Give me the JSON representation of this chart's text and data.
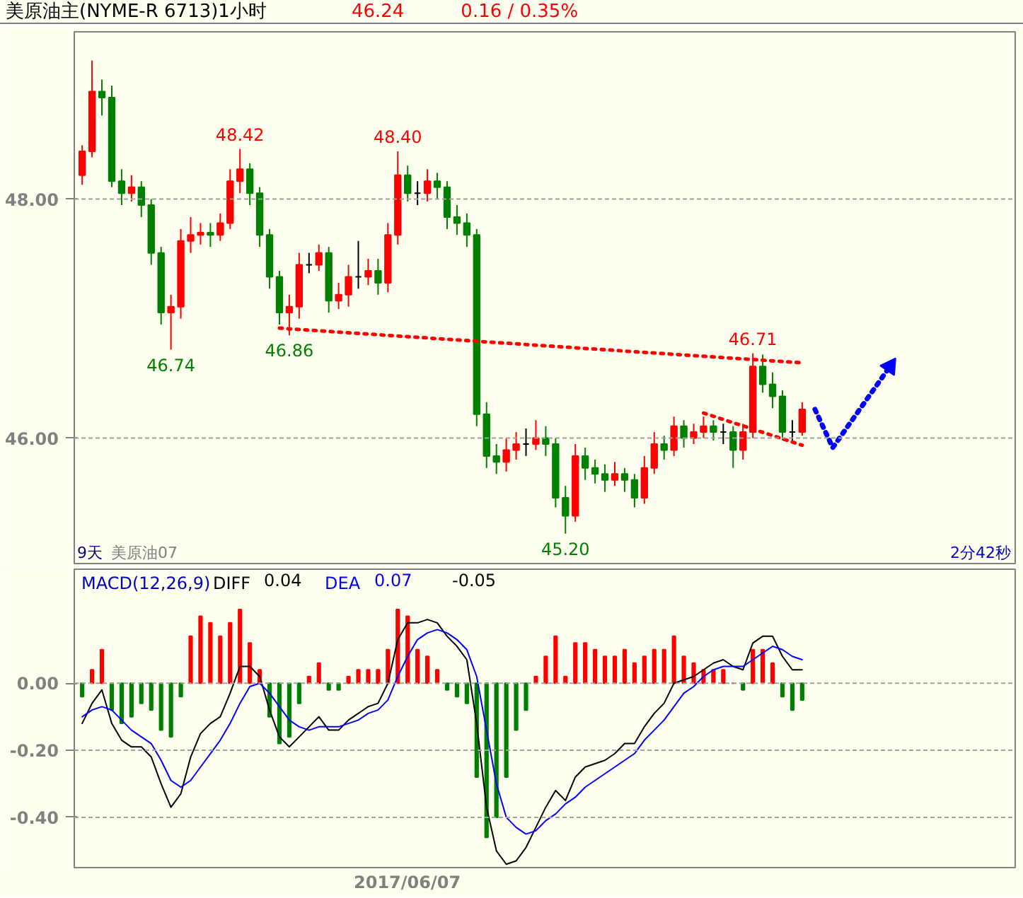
{
  "chart_data": [
    {
      "type": "candlestick",
      "title": "美原油主(NYME-R 6713)1小时",
      "categories": [
        null,
        null,
        null,
        null,
        null,
        null,
        null,
        null,
        null,
        null,
        null,
        null,
        null,
        null,
        null,
        null,
        null,
        null,
        null,
        null,
        null,
        null,
        null,
        null,
        null,
        null,
        null,
        null,
        null,
        null,
        null,
        null,
        null,
        null,
        null,
        null,
        null,
        null,
        null,
        null,
        null,
        null,
        null,
        null,
        null,
        null,
        null,
        null,
        null,
        null,
        null,
        null,
        null,
        null,
        null,
        null,
        null,
        null,
        null,
        null,
        null,
        null,
        null,
        null,
        null,
        null,
        null,
        null,
        null,
        null,
        null,
        null,
        null,
        null
      ],
      "ohlc": [
        [
          48.2,
          48.45,
          48.12,
          48.4
        ],
        [
          48.4,
          49.16,
          48.35,
          48.9
        ],
        [
          48.9,
          49.0,
          48.7,
          48.85
        ],
        [
          48.85,
          48.95,
          48.1,
          48.15
        ],
        [
          48.15,
          48.25,
          47.95,
          48.05
        ],
        [
          48.05,
          48.2,
          47.98,
          48.1
        ],
        [
          48.1,
          48.15,
          47.85,
          47.95
        ],
        [
          47.95,
          48.0,
          47.45,
          47.55
        ],
        [
          47.55,
          47.6,
          46.95,
          47.05
        ],
        [
          47.05,
          47.2,
          46.74,
          47.1
        ],
        [
          47.1,
          47.75,
          47.0,
          47.65
        ],
        [
          47.65,
          47.85,
          47.55,
          47.7
        ],
        [
          47.7,
          47.8,
          47.62,
          47.72
        ],
        [
          47.72,
          47.8,
          47.6,
          47.7
        ],
        [
          47.7,
          47.88,
          47.65,
          47.8
        ],
        [
          47.8,
          48.25,
          47.75,
          48.15
        ],
        [
          48.15,
          48.42,
          48.05,
          48.25
        ],
        [
          48.25,
          48.3,
          47.95,
          48.05
        ],
        [
          48.05,
          48.1,
          47.6,
          47.7
        ],
        [
          47.7,
          47.75,
          47.25,
          47.35
        ],
        [
          47.35,
          47.4,
          46.95,
          47.05
        ],
        [
          47.05,
          47.2,
          46.86,
          47.1
        ],
        [
          47.1,
          47.55,
          47.0,
          47.45
        ],
        [
          47.45,
          47.55,
          47.38,
          47.45
        ],
        [
          47.45,
          47.62,
          47.4,
          47.55
        ],
        [
          47.55,
          47.6,
          47.05,
          47.15
        ],
        [
          47.15,
          47.3,
          47.08,
          47.2
        ],
        [
          47.2,
          47.45,
          47.1,
          47.35
        ],
        [
          47.35,
          47.65,
          47.25,
          47.35
        ],
        [
          47.35,
          47.5,
          47.28,
          47.4
        ],
        [
          47.4,
          47.5,
          47.2,
          47.3
        ],
        [
          47.3,
          47.8,
          47.22,
          47.7
        ],
        [
          47.7,
          48.4,
          47.62,
          48.2
        ],
        [
          48.2,
          48.28,
          47.98,
          48.05
        ],
        [
          48.05,
          48.15,
          47.95,
          48.05
        ],
        [
          48.05,
          48.25,
          47.98,
          48.15
        ],
        [
          48.15,
          48.22,
          48.0,
          48.1
        ],
        [
          48.1,
          48.15,
          47.75,
          47.85
        ],
        [
          47.85,
          47.95,
          47.7,
          47.8
        ],
        [
          47.8,
          47.88,
          47.6,
          47.7
        ],
        [
          47.7,
          47.75,
          46.1,
          46.2
        ],
        [
          46.2,
          46.3,
          45.75,
          45.85
        ],
        [
          45.85,
          45.95,
          45.7,
          45.8
        ],
        [
          45.8,
          46.0,
          45.72,
          45.9
        ],
        [
          45.9,
          46.05,
          45.82,
          45.95
        ],
        [
          45.95,
          46.08,
          45.85,
          45.95
        ],
        [
          45.95,
          46.15,
          45.9,
          46.0
        ],
        [
          46.0,
          46.1,
          45.85,
          45.95
        ],
        [
          45.95,
          46.0,
          45.42,
          45.5
        ],
        [
          45.5,
          45.6,
          45.2,
          45.35
        ],
        [
          45.35,
          45.95,
          45.3,
          45.85
        ],
        [
          45.85,
          45.92,
          45.65,
          45.75
        ],
        [
          45.75,
          45.82,
          45.62,
          45.7
        ],
        [
          45.7,
          45.78,
          45.55,
          45.65
        ],
        [
          45.65,
          45.8,
          45.6,
          45.7
        ],
        [
          45.7,
          45.75,
          45.55,
          45.65
        ],
        [
          45.65,
          45.7,
          45.42,
          45.5
        ],
        [
          45.5,
          45.85,
          45.45,
          45.75
        ],
        [
          45.75,
          46.05,
          45.7,
          45.95
        ],
        [
          45.95,
          46.02,
          45.82,
          45.9
        ],
        [
          45.9,
          46.18,
          45.85,
          46.1
        ],
        [
          46.1,
          46.15,
          45.92,
          46.0
        ],
        [
          46.0,
          46.12,
          45.95,
          46.05
        ],
        [
          46.05,
          46.18,
          46.0,
          46.1
        ],
        [
          46.1,
          46.15,
          45.98,
          46.05
        ],
        [
          46.05,
          46.12,
          45.95,
          46.05
        ],
        [
          46.05,
          46.1,
          45.75,
          45.9
        ],
        [
          45.9,
          46.12,
          45.82,
          46.05
        ],
        [
          46.05,
          46.71,
          46.0,
          46.6
        ],
        [
          46.6,
          46.7,
          46.38,
          46.45
        ],
        [
          46.45,
          46.55,
          46.25,
          46.35
        ],
        [
          46.35,
          46.4,
          45.98,
          46.05
        ],
        [
          46.05,
          46.15,
          45.98,
          46.05
        ],
        [
          46.05,
          46.3,
          46.02,
          46.24
        ]
      ],
      "colors": [
        "#ff0000",
        "#ff0000",
        "#008000",
        "#008000",
        "#008000",
        "#ff0000",
        "#008000",
        "#008000",
        "#008000",
        "#ff0000",
        "#ff0000",
        "#ff0000",
        "#ff0000",
        "#008000",
        "#ff0000",
        "#ff0000",
        "#ff0000",
        "#008000",
        "#008000",
        "#008000",
        "#008000",
        "#ff0000",
        "#ff0000",
        "#000000",
        "#ff0000",
        "#008000",
        "#ff0000",
        "#ff0000",
        "#000000",
        "#ff0000",
        "#008000",
        "#ff0000",
        "#ff0000",
        "#008000",
        "#000000",
        "#ff0000",
        "#008000",
        "#008000",
        "#008000",
        "#008000",
        "#008000",
        "#008000",
        "#008000",
        "#ff0000",
        "#ff0000",
        "#000000",
        "#ff0000",
        "#008000",
        "#008000",
        "#008000",
        "#ff0000",
        "#008000",
        "#008000",
        "#008000",
        "#ff0000",
        "#008000",
        "#008000",
        "#ff0000",
        "#ff0000",
        "#008000",
        "#ff0000",
        "#008000",
        "#ff0000",
        "#ff0000",
        "#008000",
        "#000000",
        "#008000",
        "#ff0000",
        "#ff0000",
        "#008000",
        "#008000",
        "#008000",
        "#000000",
        "#ff0000"
      ],
      "series": [
        {
          "type": "line",
          "color": "#ff0000",
          "line_style": "dotted",
          "values": [
            null,
            null,
            null,
            null,
            null,
            null,
            null,
            null,
            null,
            null,
            null,
            null,
            null,
            null,
            null,
            null,
            null,
            null,
            null,
            null,
            46.92,
            null,
            null,
            null,
            null,
            null,
            null,
            null,
            null,
            null,
            null,
            null,
            null,
            null,
            null,
            null,
            null,
            null,
            null,
            null,
            null,
            null,
            null,
            null,
            null,
            null,
            null,
            null,
            null,
            null,
            null,
            null,
            null,
            null,
            null,
            null,
            null,
            null,
            null,
            null,
            null,
            null,
            null,
            null,
            null,
            null,
            null,
            null,
            null,
            null,
            null,
            null,
            null,
            46.63
          ]
        },
        {
          "type": "line",
          "color": "#ff0000",
          "line_style": "dotted",
          "values": [
            null,
            null,
            null,
            null,
            null,
            null,
            null,
            null,
            null,
            null,
            null,
            null,
            null,
            null,
            null,
            null,
            null,
            null,
            null,
            null,
            null,
            null,
            null,
            null,
            null,
            null,
            null,
            null,
            null,
            null,
            null,
            null,
            null,
            null,
            null,
            null,
            null,
            null,
            null,
            null,
            null,
            null,
            null,
            null,
            null,
            null,
            null,
            null,
            null,
            null,
            null,
            null,
            null,
            null,
            null,
            null,
            null,
            null,
            null,
            null,
            null,
            null,
            null,
            46.21,
            null,
            null,
            null,
            null,
            null,
            null,
            null,
            null,
            null,
            45.94
          ]
        }
      ],
      "ylim": [
        44.95,
        49.4
      ],
      "yticks": [
        {
          "value": 46,
          "label": "46.00"
        },
        {
          "value": 48,
          "label": "48.00"
        }
      ],
      "grid": "y",
      "tick_labels": "y",
      "annotations": [
        "46.24",
        "0.16 / 0.35%",
        "9天",
        "美原油07",
        "2分42秒",
        {
          "text": "48.42",
          "y": 48.42
        },
        {
          "text": "48.40",
          "y": 48.4
        },
        {
          "text": "46.74",
          "y": 46.74
        },
        {
          "text": "46.86",
          "y": 46.86
        },
        {
          "text": "45.20",
          "y": 45.2
        },
        {
          "text": "46.71",
          "y": 46.71
        }
      ]
    },
    {
      "type": "bar",
      "title": "MACD(12,26,9)",
      "categories": [
        null,
        null,
        null,
        null,
        null,
        null,
        null,
        null,
        null,
        null,
        null,
        null,
        null,
        null,
        null,
        null,
        null,
        null,
        null,
        null,
        null,
        null,
        null,
        null,
        null,
        null,
        null,
        null,
        null,
        null,
        null,
        null,
        null,
        null,
        null,
        null,
        null,
        null,
        null,
        null,
        null,
        null,
        null,
        null,
        null,
        null,
        null,
        null,
        null,
        null,
        null,
        null,
        null,
        null,
        null,
        null,
        null,
        null,
        null,
        null,
        null,
        null,
        null,
        null,
        null,
        null,
        null,
        null,
        null,
        null,
        null,
        null,
        null,
        null
      ],
      "series": [
        {
          "type": "bar",
          "values": [
            -0.04,
            0.04,
            0.1,
            -0.08,
            -0.12,
            -0.1,
            -0.06,
            -0.08,
            -0.14,
            -0.16,
            -0.04,
            0.14,
            0.2,
            0.18,
            0.14,
            0.18,
            0.22,
            0.12,
            0.04,
            -0.1,
            -0.18,
            -0.16,
            -0.06,
            0.02,
            0.06,
            -0.02,
            -0.02,
            0.02,
            0.04,
            0.04,
            0.04,
            0.1,
            0.22,
            0.2,
            0.1,
            0.08,
            0.04,
            -0.02,
            -0.04,
            -0.06,
            -0.28,
            -0.46,
            -0.4,
            -0.28,
            -0.14,
            -0.08,
            0.02,
            0.08,
            0.14,
            0.02,
            0.12,
            0.12,
            0.1,
            0.08,
            0.08,
            0.1,
            0.06,
            0.08,
            0.1,
            0.1,
            0.14,
            0.08,
            0.06,
            0.04,
            0.04,
            0.04,
            0.0,
            -0.02,
            0.1,
            0.1,
            0.06,
            -0.04,
            -0.08,
            -0.05
          ],
          "colors": [
            "#008000",
            "#ff0000",
            "#ff0000",
            "#008000",
            "#008000",
            "#008000",
            "#008000",
            "#008000",
            "#008000",
            "#008000",
            "#008000",
            "#ff0000",
            "#ff0000",
            "#ff0000",
            "#ff0000",
            "#ff0000",
            "#ff0000",
            "#ff0000",
            "#ff0000",
            "#008000",
            "#008000",
            "#008000",
            "#008000",
            "#ff0000",
            "#ff0000",
            "#008000",
            "#008000",
            "#ff0000",
            "#ff0000",
            "#ff0000",
            "#ff0000",
            "#ff0000",
            "#ff0000",
            "#ff0000",
            "#ff0000",
            "#ff0000",
            "#ff0000",
            "#008000",
            "#008000",
            "#008000",
            "#008000",
            "#008000",
            "#008000",
            "#008000",
            "#008000",
            "#008000",
            "#ff0000",
            "#ff0000",
            "#ff0000",
            "#ff0000",
            "#ff0000",
            "#ff0000",
            "#ff0000",
            "#ff0000",
            "#ff0000",
            "#ff0000",
            "#ff0000",
            "#ff0000",
            "#ff0000",
            "#ff0000",
            "#ff0000",
            "#ff0000",
            "#ff0000",
            "#ff0000",
            "#ff0000",
            "#ff0000",
            "#ff0000",
            "#008000",
            "#ff0000",
            "#ff0000",
            "#ff0000",
            "#008000",
            "#008000",
            "#008000"
          ]
        },
        {
          "type": "line",
          "name": "DIFF",
          "color": "#000000",
          "values": [
            -0.12,
            -0.06,
            -0.02,
            -0.12,
            -0.17,
            -0.19,
            -0.19,
            -0.22,
            -0.3,
            -0.37,
            -0.33,
            -0.22,
            -0.15,
            -0.12,
            -0.1,
            -0.03,
            0.05,
            0.05,
            0.02,
            -0.08,
            -0.16,
            -0.19,
            -0.16,
            -0.13,
            -0.1,
            -0.14,
            -0.14,
            -0.11,
            -0.09,
            -0.07,
            -0.06,
            0.0,
            0.13,
            0.18,
            0.18,
            0.19,
            0.18,
            0.14,
            0.11,
            0.07,
            -0.12,
            -0.37,
            -0.5,
            -0.54,
            -0.53,
            -0.49,
            -0.43,
            -0.37,
            -0.32,
            -0.35,
            -0.28,
            -0.25,
            -0.24,
            -0.23,
            -0.21,
            -0.18,
            -0.18,
            -0.13,
            -0.09,
            -0.06,
            0.0,
            0.01,
            0.02,
            0.04,
            0.06,
            0.07,
            0.05,
            0.04,
            0.12,
            0.14,
            0.14,
            0.08,
            0.04,
            0.04
          ]
        },
        {
          "type": "line",
          "name": "DEA",
          "color": "#0000ff",
          "values": [
            -0.1,
            -0.08,
            -0.07,
            -0.08,
            -0.11,
            -0.14,
            -0.16,
            -0.18,
            -0.23,
            -0.29,
            -0.31,
            -0.29,
            -0.25,
            -0.21,
            -0.17,
            -0.12,
            -0.06,
            -0.01,
            0.0,
            -0.03,
            -0.07,
            -0.11,
            -0.13,
            -0.14,
            -0.13,
            -0.13,
            -0.13,
            -0.12,
            -0.11,
            -0.09,
            -0.08,
            -0.05,
            0.02,
            0.08,
            0.13,
            0.15,
            0.16,
            0.15,
            0.13,
            0.1,
            0.02,
            -0.14,
            -0.3,
            -0.4,
            -0.43,
            -0.45,
            -0.44,
            -0.41,
            -0.39,
            -0.36,
            -0.34,
            -0.31,
            -0.29,
            -0.27,
            -0.25,
            -0.23,
            -0.21,
            -0.17,
            -0.14,
            -0.11,
            -0.07,
            -0.03,
            -0.01,
            0.02,
            0.04,
            0.05,
            0.05,
            0.05,
            0.07,
            0.09,
            0.11,
            0.1,
            0.08,
            0.07
          ]
        }
      ],
      "ylim": [
        -0.55,
        0.34
      ],
      "yticks": [
        {
          "value": 0,
          "label": "0.00"
        },
        {
          "value": -0.2,
          "label": "-0.20"
        },
        {
          "value": -0.4,
          "label": "-0.40"
        }
      ],
      "grid": "y",
      "tick_labels": "y",
      "annotations": [
        "0.04",
        "0.07",
        "-0.05",
        "2017/06/07"
      ]
    }
  ]
}
